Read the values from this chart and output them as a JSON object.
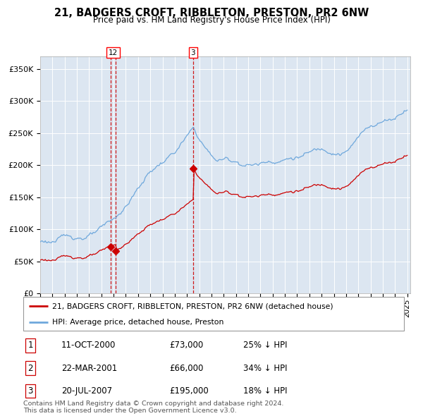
{
  "title": "21, BADGERS CROFT, RIBBLETON, PRESTON, PR2 6NW",
  "subtitle": "Price paid vs. HM Land Registry's House Price Index (HPI)",
  "transactions": [
    {
      "num": 1,
      "date": "2000-10-11",
      "price": 73000,
      "pct": "25%",
      "dir": "↓"
    },
    {
      "num": 2,
      "date": "2001-03-22",
      "price": 66000,
      "pct": "34%",
      "dir": "↓"
    },
    {
      "num": 3,
      "date": "2007-07-20",
      "price": 195000,
      "pct": "18%",
      "dir": "↓"
    }
  ],
  "legend_line1": "21, BADGERS CROFT, RIBBLETON, PRESTON, PR2 6NW (detached house)",
  "legend_line2": "HPI: Average price, detached house, Preston",
  "footnote1": "Contains HM Land Registry data © Crown copyright and database right 2024.",
  "footnote2": "This data is licensed under the Open Government Licence v3.0.",
  "hpi_color": "#6fa8dc",
  "price_color": "#cc0000",
  "marker_color": "#cc0000",
  "vline_color": "#cc0000",
  "bg_color": "#dce6f1",
  "ylim": [
    0,
    370000
  ],
  "yticks": [
    0,
    50000,
    100000,
    150000,
    200000,
    250000,
    300000,
    350000
  ],
  "xstart_year": 1995,
  "xend_year": 2025
}
